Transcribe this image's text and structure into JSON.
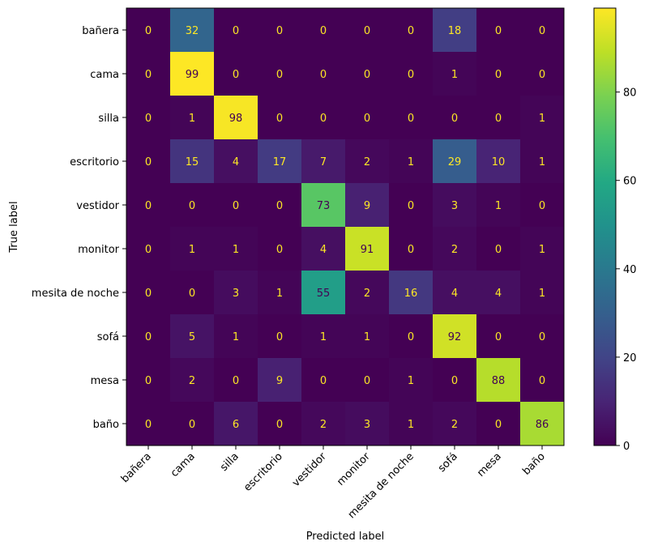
{
  "chart_data": {
    "type": "heatmap",
    "title": "",
    "xlabel": "Predicted label",
    "ylabel": "True label",
    "x_categories": [
      "bañera",
      "cama",
      "silla",
      "escritorio",
      "vestidor",
      "monitor",
      "mesita de noche",
      "sofá",
      "mesa",
      "baño"
    ],
    "y_categories": [
      "bañera",
      "cama",
      "silla",
      "escritorio",
      "vestidor",
      "monitor",
      "mesita de noche",
      "sofá",
      "mesa",
      "baño"
    ],
    "matrix": [
      [
        0,
        32,
        0,
        0,
        0,
        0,
        0,
        18,
        0,
        0
      ],
      [
        0,
        99,
        0,
        0,
        0,
        0,
        0,
        1,
        0,
        0
      ],
      [
        0,
        1,
        98,
        0,
        0,
        0,
        0,
        0,
        0,
        1
      ],
      [
        0,
        15,
        4,
        17,
        7,
        2,
        1,
        29,
        10,
        1
      ],
      [
        0,
        0,
        0,
        0,
        73,
        9,
        0,
        3,
        1,
        0
      ],
      [
        0,
        1,
        1,
        0,
        4,
        91,
        0,
        2,
        0,
        1
      ],
      [
        0,
        0,
        3,
        1,
        55,
        2,
        16,
        4,
        4,
        1
      ],
      [
        0,
        5,
        1,
        0,
        1,
        1,
        0,
        92,
        0,
        0
      ],
      [
        0,
        2,
        0,
        9,
        0,
        0,
        1,
        0,
        88,
        0
      ],
      [
        0,
        0,
        6,
        0,
        2,
        3,
        1,
        2,
        0,
        86
      ]
    ],
    "colormap": "viridis",
    "value_range": [
      0,
      99
    ],
    "colorbar_ticks": [
      "0",
      "20",
      "40",
      "60",
      "80"
    ],
    "colorbar_tick_values": [
      0,
      20,
      40,
      60,
      80
    ],
    "text_color_dark_cells": "#fde725",
    "text_color_light_cells": "#440154"
  }
}
